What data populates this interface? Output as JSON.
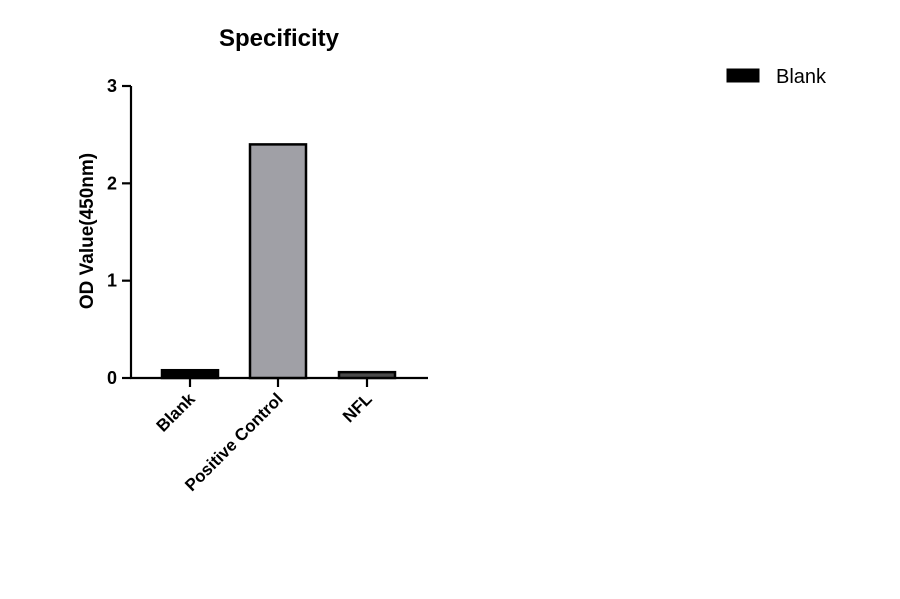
{
  "chart_data": {
    "type": "bar",
    "title": "Specificity",
    "xlabel": "",
    "ylabel": "OD Value(450nm)",
    "categories": [
      "Blank",
      "Positive Control",
      "NFL"
    ],
    "series": [
      {
        "values": [
          0.08,
          2.4,
          0.06
        ],
        "colors": [
          "#000000",
          "#a0a0a6",
          "#4a4a4a"
        ]
      }
    ],
    "ylim": [
      0,
      3
    ],
    "yticks": [
      0,
      1,
      2,
      3
    ],
    "ytick_labels": [
      "0",
      "1",
      "2",
      "3"
    ],
    "grid": false,
    "legend": {
      "placement": "top-right",
      "entries": [
        {
          "label": "Blank",
          "color": "#000000"
        }
      ]
    }
  }
}
